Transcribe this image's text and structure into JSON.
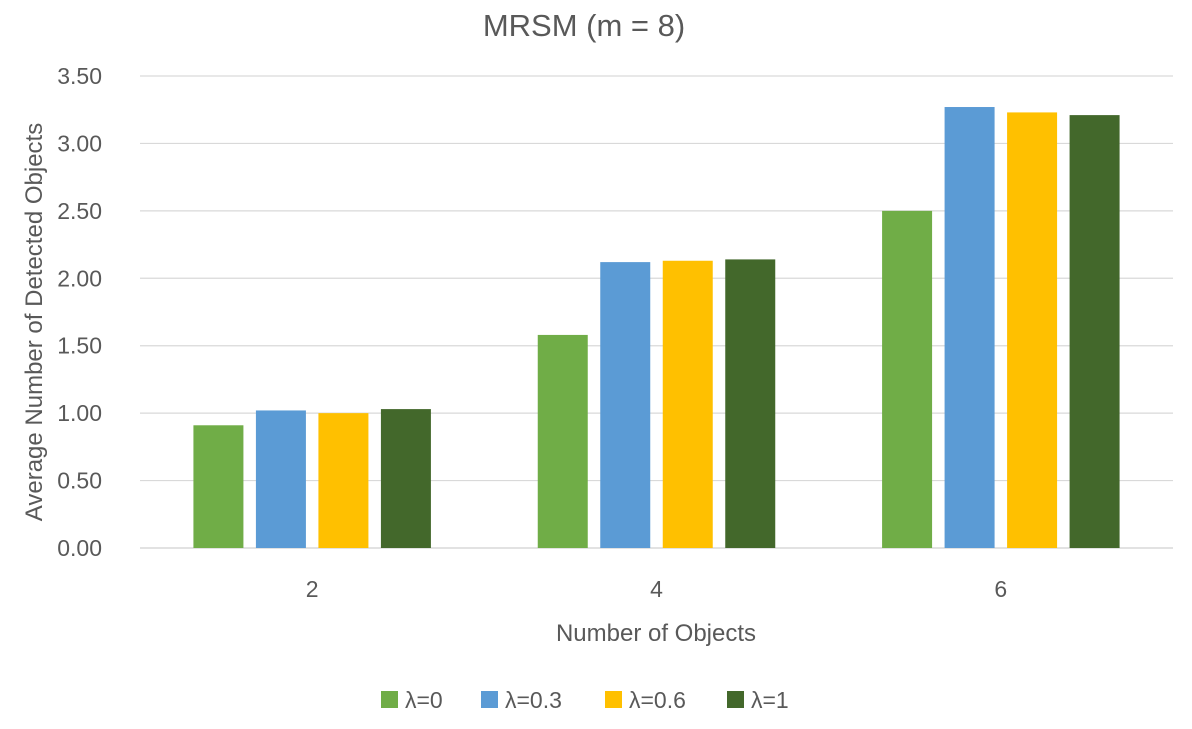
{
  "chart_data": {
    "type": "bar",
    "title": "MRSM (m = 8)",
    "xlabel": "Number of Objects",
    "ylabel": "Average Number of Detected Objects",
    "categories": [
      "2",
      "4",
      "6"
    ],
    "ylim": [
      0,
      3.5
    ],
    "yticks": [
      0,
      0.5,
      1.0,
      1.5,
      2.0,
      2.5,
      3.0,
      3.5
    ],
    "ytick_labels": [
      "0.00",
      "0.50",
      "1.00",
      "1.50",
      "2.00",
      "2.50",
      "3.00",
      "3.50"
    ],
    "grid": true,
    "legend_position": "bottom",
    "series": [
      {
        "name": "λ=0",
        "color": "#70ad47",
        "values": [
          0.91,
          1.58,
          2.5
        ]
      },
      {
        "name": "λ=0.3",
        "color": "#5b9bd5",
        "values": [
          1.02,
          2.12,
          3.27
        ]
      },
      {
        "name": "λ=0.6",
        "color": "#ffc000",
        "values": [
          1.0,
          2.13,
          3.23
        ]
      },
      {
        "name": "λ=1",
        "color": "#43682b",
        "values": [
          1.03,
          2.14,
          3.21
        ]
      }
    ]
  }
}
